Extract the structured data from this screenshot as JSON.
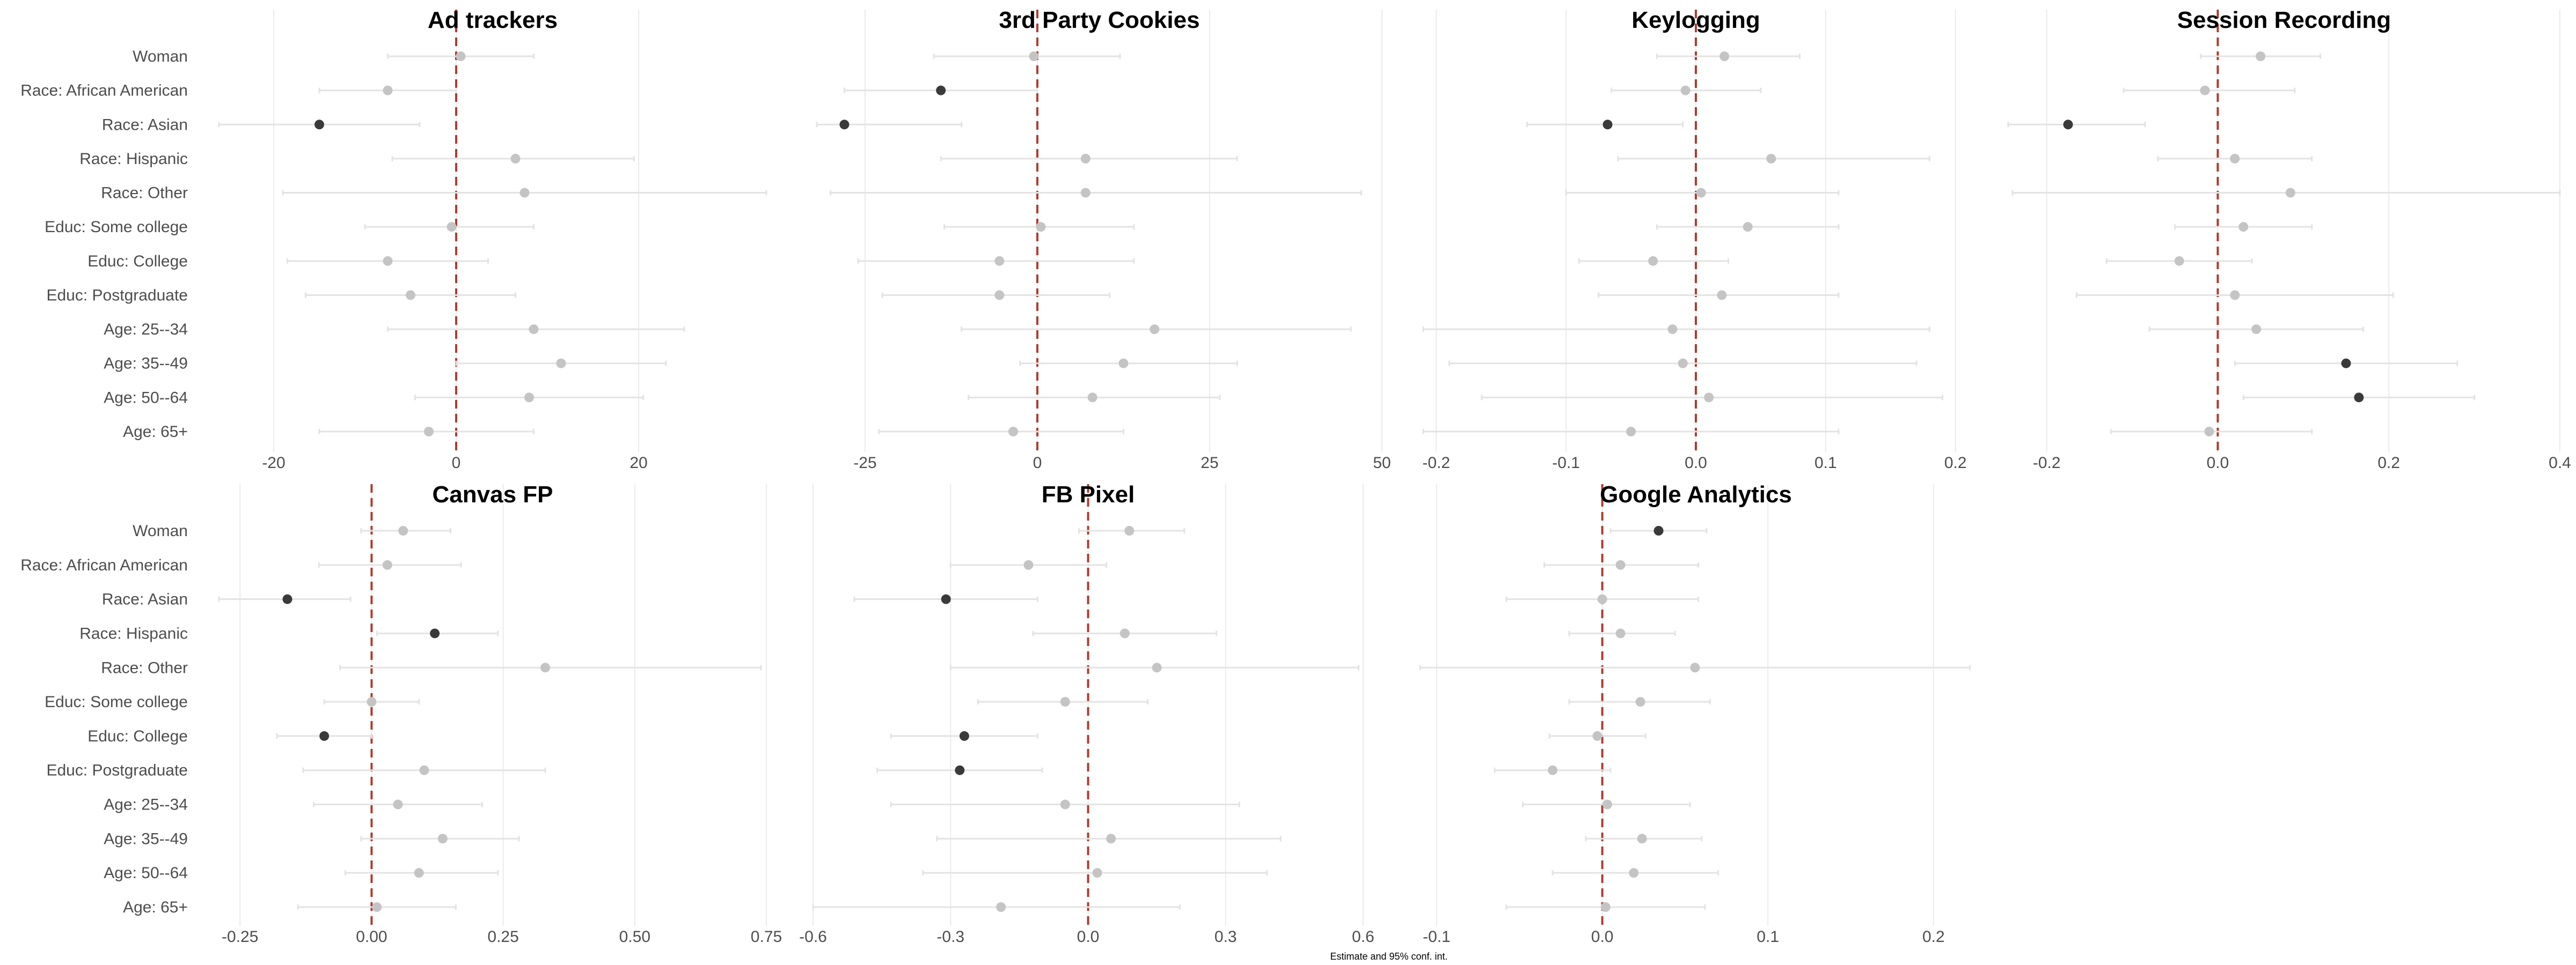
{
  "chart_data": {
    "type": "scatter",
    "xlabel": "Estimate and 95% conf. int.",
    "categories": [
      "Woman",
      "Race: African American",
      "Race: Asian",
      "Race: Hispanic",
      "Race: Other",
      "Educ: Some college",
      "Educ: College",
      "Educ: Postgraduate",
      "Age: 25--34",
      "Age: 35--49",
      "Age: 50--64",
      "Age: 65+"
    ],
    "colors": {
      "significant": "#3a3a3a",
      "not_significant": "#c4c4c4",
      "zero_line": "#b03a2e",
      "ci": "#e3e3e3",
      "grid": "#ebebeb"
    },
    "panels": [
      {
        "title": "Ad trackers",
        "xlim": [
          -26,
          34
        ],
        "ticks": [
          -20,
          0,
          20
        ],
        "tick_labels": [
          "-20",
          "0",
          "20"
        ],
        "est": [
          0.5,
          -7.5,
          -15,
          6.5,
          7.5,
          -0.5,
          -7.5,
          -5,
          8.5,
          11.5,
          8,
          -3
        ],
        "lo": [
          -7.5,
          -15,
          -26,
          -7,
          -19,
          -10,
          -18.5,
          -16.5,
          -7.5,
          0,
          -4.5,
          -15
        ],
        "hi": [
          8.5,
          0,
          -4,
          19.5,
          34,
          8.5,
          3.5,
          6.5,
          25,
          23,
          20.5,
          8.5
        ],
        "sig": [
          false,
          false,
          true,
          false,
          false,
          false,
          false,
          false,
          false,
          false,
          false,
          false
        ]
      },
      {
        "title": "3rd Party Cookies",
        "xlim": [
          -32,
          50
        ],
        "ticks": [
          -25,
          0,
          25,
          50
        ],
        "tick_labels": [
          "-25",
          "0",
          "25",
          "50"
        ],
        "est": [
          -0.5,
          -14,
          -28,
          7,
          7,
          0.5,
          -5.5,
          -5.5,
          17,
          12.5,
          8,
          -3.5
        ],
        "lo": [
          -15,
          -28,
          -32,
          -14,
          -30,
          -13.5,
          -26,
          -22.5,
          -11,
          -2.5,
          -10,
          -23
        ],
        "hi": [
          12,
          0,
          -11,
          29,
          47,
          14,
          14,
          10.5,
          45.5,
          29,
          26.5,
          12.5
        ],
        "sig": [
          false,
          true,
          true,
          false,
          false,
          false,
          false,
          false,
          false,
          false,
          false,
          false
        ]
      },
      {
        "title": "Keylogging",
        "xlim": [
          -0.215,
          0.215
        ],
        "ticks": [
          -0.2,
          -0.1,
          0.0,
          0.1,
          0.2
        ],
        "tick_labels": [
          "-0.2",
          "-0.1",
          "0.0",
          "0.1",
          "0.2"
        ],
        "est": [
          0.022,
          -0.008,
          -0.068,
          0.058,
          0.004,
          0.04,
          -0.033,
          0.02,
          -0.018,
          -0.01,
          0.01,
          -0.05
        ],
        "lo": [
          -0.03,
          -0.065,
          -0.13,
          -0.06,
          -0.1,
          -0.03,
          -0.09,
          -0.075,
          -0.21,
          -0.19,
          -0.165,
          -0.21
        ],
        "hi": [
          0.08,
          0.05,
          -0.01,
          0.18,
          0.11,
          0.11,
          0.025,
          0.11,
          0.18,
          0.17,
          0.19,
          0.11
        ],
        "sig": [
          false,
          false,
          true,
          false,
          false,
          false,
          false,
          false,
          false,
          false,
          false,
          false
        ]
      },
      {
        "title": "Session Recording",
        "xlim": [
          -0.245,
          0.4
        ],
        "ticks": [
          -0.2,
          0.0,
          0.2,
          0.4
        ],
        "tick_labels": [
          "-0.2",
          "0.0",
          "0.2",
          "0.4"
        ],
        "est": [
          0.05,
          -0.015,
          -0.175,
          0.02,
          0.085,
          0.03,
          -0.045,
          0.02,
          0.045,
          0.15,
          0.165,
          -0.01
        ],
        "lo": [
          -0.02,
          -0.11,
          -0.245,
          -0.07,
          -0.24,
          -0.05,
          -0.13,
          -0.165,
          -0.08,
          0.02,
          0.03,
          -0.125
        ],
        "hi": [
          0.12,
          0.09,
          -0.085,
          0.11,
          0.4,
          0.11,
          0.04,
          0.205,
          0.17,
          0.28,
          0.3,
          0.11
        ],
        "sig": [
          false,
          false,
          true,
          false,
          false,
          false,
          false,
          false,
          false,
          true,
          true,
          false
        ]
      },
      {
        "title": "Canvas FP",
        "xlim": [
          -0.29,
          0.75
        ],
        "ticks": [
          -0.25,
          0.0,
          0.25,
          0.5,
          0.75
        ],
        "tick_labels": [
          "-0.25",
          "0.00",
          "0.25",
          "0.50",
          "0.75"
        ],
        "est": [
          0.06,
          0.03,
          -0.16,
          0.12,
          0.33,
          0.0,
          -0.09,
          0.1,
          0.05,
          0.135,
          0.09,
          0.01
        ],
        "lo": [
          -0.02,
          -0.1,
          -0.29,
          0.01,
          -0.06,
          -0.09,
          -0.18,
          -0.13,
          -0.11,
          -0.02,
          -0.05,
          -0.14
        ],
        "hi": [
          0.15,
          0.17,
          -0.04,
          0.24,
          0.74,
          0.09,
          0.0,
          0.33,
          0.21,
          0.28,
          0.24,
          0.16
        ],
        "sig": [
          false,
          false,
          true,
          true,
          false,
          false,
          true,
          false,
          false,
          false,
          false,
          false
        ]
      },
      {
        "title": "FB Pixel",
        "xlim": [
          -0.6,
          0.6
        ],
        "ticks": [
          -0.6,
          -0.3,
          0.0,
          0.3,
          0.6
        ],
        "tick_labels": [
          "-0.6",
          "-0.3",
          "0.0",
          "0.3",
          "0.6"
        ],
        "est": [
          0.09,
          -0.13,
          -0.31,
          0.08,
          0.15,
          -0.05,
          -0.27,
          -0.28,
          -0.05,
          0.05,
          0.02,
          -0.19
        ],
        "lo": [
          -0.02,
          -0.3,
          -0.51,
          -0.12,
          -0.3,
          -0.24,
          -0.43,
          -0.46,
          -0.43,
          -0.33,
          -0.36,
          -0.6
        ],
        "hi": [
          0.21,
          0.04,
          -0.11,
          0.28,
          0.59,
          0.13,
          -0.11,
          -0.1,
          0.33,
          0.42,
          0.39,
          0.2
        ],
        "sig": [
          false,
          false,
          true,
          false,
          false,
          false,
          true,
          true,
          false,
          false,
          false,
          false
        ]
      },
      {
        "title": "Google Analytics",
        "xlim": [
          -0.112,
          0.225
        ],
        "ticks": [
          -0.1,
          0.0,
          0.1,
          0.2
        ],
        "tick_labels": [
          "-0.1",
          "0.0",
          "0.1",
          "0.2"
        ],
        "est": [
          0.034,
          0.011,
          0.0,
          0.011,
          0.056,
          0.023,
          -0.003,
          -0.03,
          0.003,
          0.024,
          0.019,
          0.002
        ],
        "lo": [
          0.005,
          -0.035,
          -0.058,
          -0.02,
          -0.11,
          -0.02,
          -0.032,
          -0.065,
          -0.048,
          -0.01,
          -0.03,
          -0.058
        ],
        "hi": [
          0.063,
          0.058,
          0.058,
          0.044,
          0.222,
          0.065,
          0.026,
          0.005,
          0.053,
          0.06,
          0.07,
          0.062
        ],
        "sig": [
          true,
          false,
          false,
          false,
          false,
          false,
          false,
          false,
          false,
          false,
          false,
          false
        ]
      }
    ]
  }
}
